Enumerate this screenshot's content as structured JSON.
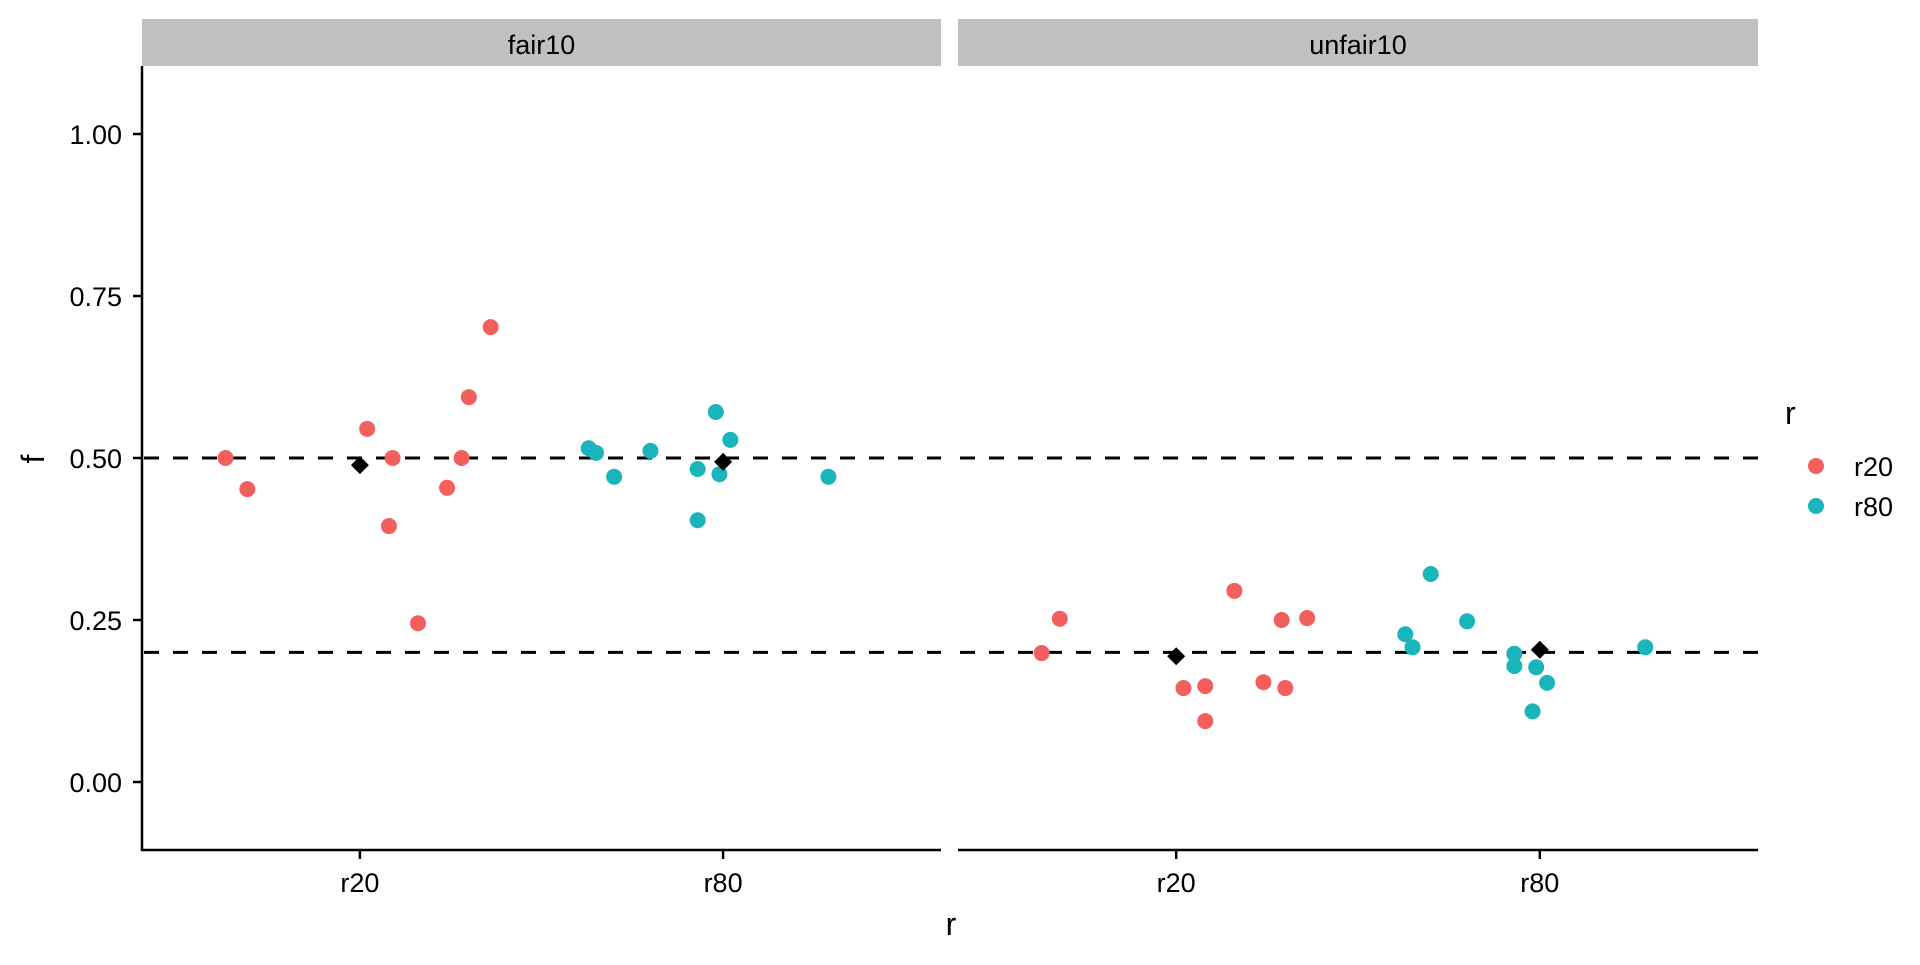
{
  "chart_data": {
    "type": "scatter",
    "title": "",
    "xlabel": "r",
    "ylabel": "f",
    "ylim": [
      -0.1,
      1.1
    ],
    "y_ticks": [
      0.0,
      0.25,
      0.5,
      0.75,
      1.0
    ],
    "y_tick_labels": [
      "0.00",
      "0.25",
      "0.50",
      "0.75",
      "1.00"
    ],
    "categories": [
      "r20",
      "r80"
    ],
    "grid": false,
    "legend": {
      "title": "r",
      "position": "right",
      "entries": [
        {
          "label": "r20",
          "color": "#F35F5C"
        },
        {
          "label": "r80",
          "color": "#1AB5BA"
        }
      ]
    },
    "facets": [
      {
        "label": "fair10",
        "reference_line": 0.5,
        "means": [
          {
            "category": "r20",
            "value": 0.489
          },
          {
            "category": "r80",
            "value": 0.494
          }
        ],
        "series": [
          {
            "name": "r20",
            "points": [
              {
                "x_offset": -0.37,
                "y": 0.5
              },
              {
                "x_offset": -0.31,
                "y": 0.452
              },
              {
                "x_offset": 0.02,
                "y": 0.545
              },
              {
                "x_offset": 0.09,
                "y": 0.5
              },
              {
                "x_offset": 0.08,
                "y": 0.395
              },
              {
                "x_offset": 0.16,
                "y": 0.245
              },
              {
                "x_offset": 0.24,
                "y": 0.454
              },
              {
                "x_offset": 0.28,
                "y": 0.5
              },
              {
                "x_offset": 0.3,
                "y": 0.594
              },
              {
                "x_offset": 0.36,
                "y": 0.702
              }
            ]
          },
          {
            "name": "r80",
            "points": [
              {
                "x_offset": -0.37,
                "y": 0.515
              },
              {
                "x_offset": -0.35,
                "y": 0.508
              },
              {
                "x_offset": -0.3,
                "y": 0.471
              },
              {
                "x_offset": -0.2,
                "y": 0.511
              },
              {
                "x_offset": -0.07,
                "y": 0.483
              },
              {
                "x_offset": -0.07,
                "y": 0.404
              },
              {
                "x_offset": -0.02,
                "y": 0.571
              },
              {
                "x_offset": 0.02,
                "y": 0.528
              },
              {
                "x_offset": -0.01,
                "y": 0.475
              },
              {
                "x_offset": 0.29,
                "y": 0.471
              }
            ]
          }
        ]
      },
      {
        "label": "unfair10",
        "reference_line": 0.2,
        "means": [
          {
            "category": "r20",
            "value": 0.194
          },
          {
            "category": "r80",
            "value": 0.204
          }
        ],
        "series": [
          {
            "name": "r20",
            "points": [
              {
                "x_offset": -0.37,
                "y": 0.199
              },
              {
                "x_offset": -0.32,
                "y": 0.252
              },
              {
                "x_offset": 0.16,
                "y": 0.295
              },
              {
                "x_offset": 0.29,
                "y": 0.25
              },
              {
                "x_offset": 0.36,
                "y": 0.253
              },
              {
                "x_offset": 0.02,
                "y": 0.145
              },
              {
                "x_offset": 0.08,
                "y": 0.148
              },
              {
                "x_offset": 0.24,
                "y": 0.154
              },
              {
                "x_offset": 0.3,
                "y": 0.145
              },
              {
                "x_offset": 0.08,
                "y": 0.094
              }
            ]
          },
          {
            "name": "r80",
            "points": [
              {
                "x_offset": -0.3,
                "y": 0.321
              },
              {
                "x_offset": -0.37,
                "y": 0.228
              },
              {
                "x_offset": -0.35,
                "y": 0.208
              },
              {
                "x_offset": -0.2,
                "y": 0.248
              },
              {
                "x_offset": -0.07,
                "y": 0.198
              },
              {
                "x_offset": -0.07,
                "y": 0.179
              },
              {
                "x_offset": -0.01,
                "y": 0.177
              },
              {
                "x_offset": 0.02,
                "y": 0.153
              },
              {
                "x_offset": -0.02,
                "y": 0.109
              },
              {
                "x_offset": 0.29,
                "y": 0.208
              }
            ]
          }
        ]
      }
    ]
  },
  "style": {
    "strip_fill": "#C0C0C0",
    "axis_color": "#000000",
    "mean_marker_color": "#000000",
    "reference_line_color": "#000000"
  }
}
